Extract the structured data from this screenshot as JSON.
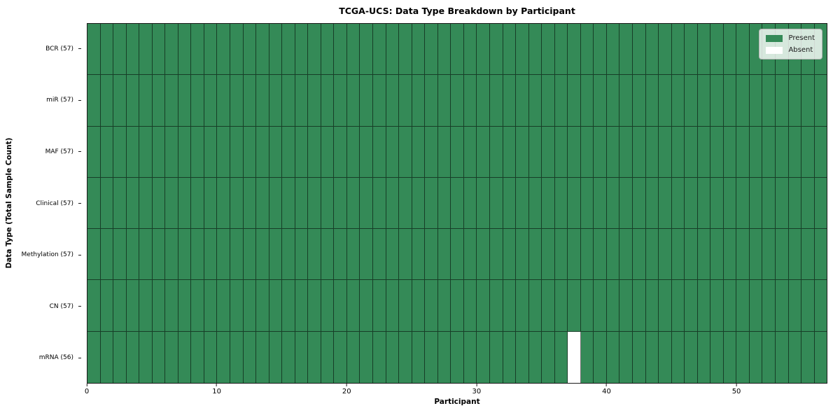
{
  "chart_data": {
    "type": "heatmap",
    "title": "TCGA-UCS: Data Type Breakdown by Participant",
    "xlabel": "Participant",
    "ylabel": "Data Type (Total Sample Count)",
    "x_range": [
      0,
      57
    ],
    "x_ticks": [
      0,
      10,
      20,
      30,
      40,
      50
    ],
    "n_participants": 57,
    "grid_lines": "cell-edges",
    "legend_position": "upper-right",
    "colors": {
      "present": "#348a57",
      "absent": "#ffffff",
      "cell_edge": "rgba(0,0,0,0.55)"
    },
    "legend": [
      {
        "label": "Present",
        "color": "#348a57"
      },
      {
        "label": "Absent",
        "color": "#ffffff"
      }
    ],
    "rows": [
      {
        "label": "BCR (57)",
        "present_count": 57,
        "absent_indices": []
      },
      {
        "label": "miR (57)",
        "present_count": 57,
        "absent_indices": []
      },
      {
        "label": "MAF (57)",
        "present_count": 57,
        "absent_indices": []
      },
      {
        "label": "Clinical (57)",
        "present_count": 57,
        "absent_indices": []
      },
      {
        "label": "Methylation (57)",
        "present_count": 57,
        "absent_indices": []
      },
      {
        "label": "CN (57)",
        "present_count": 57,
        "absent_indices": []
      },
      {
        "label": "mRNA (56)",
        "present_count": 56,
        "absent_indices": [
          37
        ]
      }
    ]
  }
}
